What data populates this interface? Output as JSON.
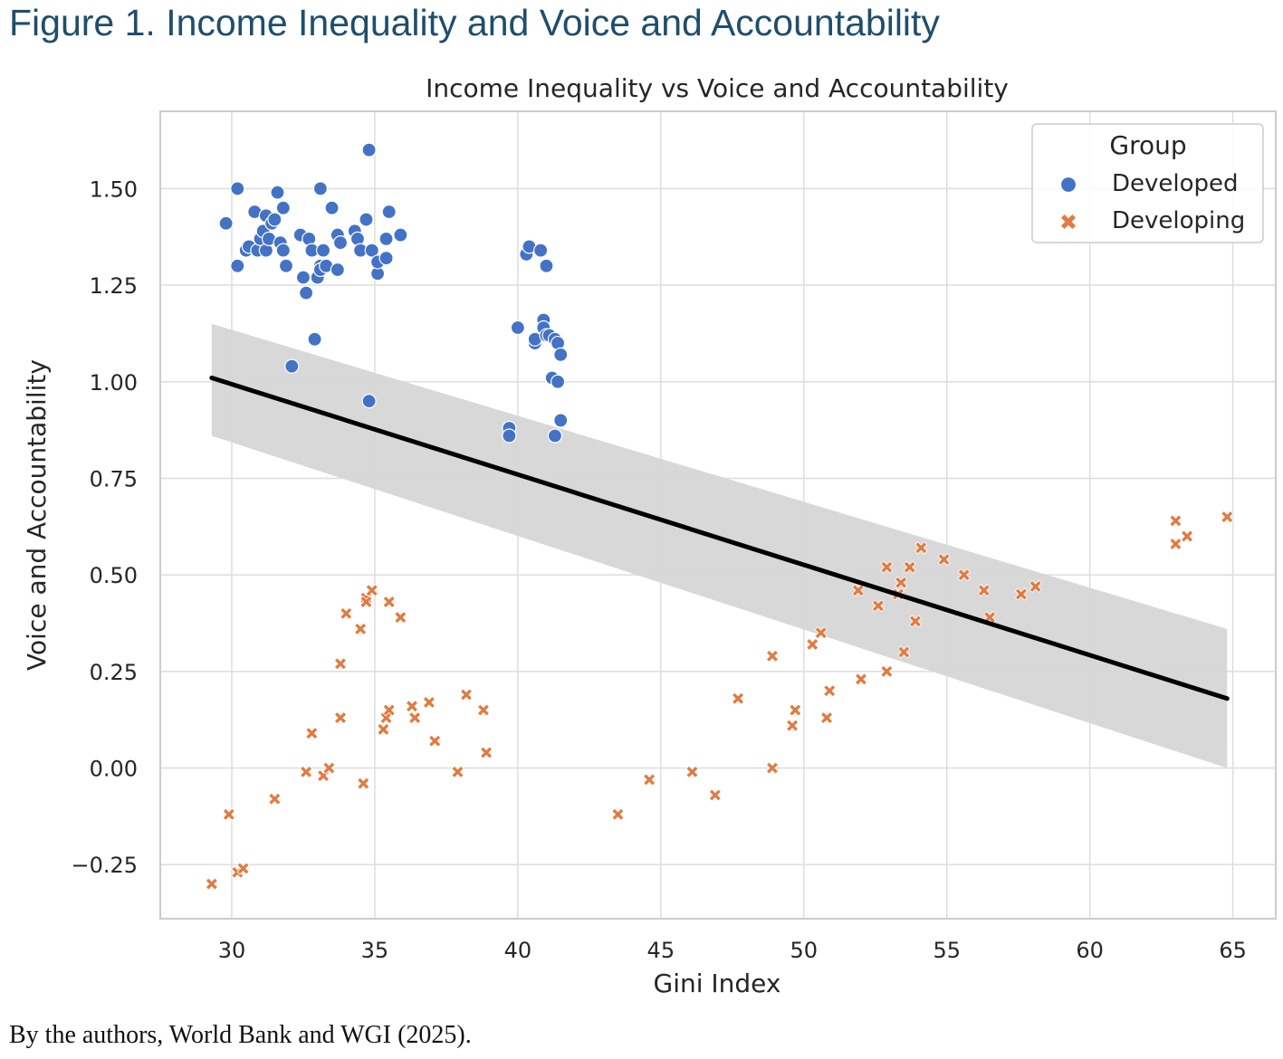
{
  "figure": {
    "title": "Figure 1. Income Inequality and Voice and Accountability",
    "caption": "By the authors, World Bank and WGI (2025)."
  },
  "colors": {
    "developed": "#4472c4",
    "developing": "#e07b42",
    "fit_line": "#000000",
    "ci_band": "#d6d6d6",
    "grid": "#dddddd",
    "frame": "#cccccc"
  },
  "chart_data": {
    "type": "scatter",
    "title": "Income Inequality vs Voice and Accountability",
    "xlabel": "Gini Index",
    "ylabel": "Voice and Accountability",
    "xlim": [
      27.5,
      66.5
    ],
    "ylim": [
      -0.39,
      1.7
    ],
    "xticks": [
      30,
      35,
      40,
      45,
      50,
      55,
      60,
      65
    ],
    "xtick_labels": [
      "30",
      "35",
      "40",
      "45",
      "50",
      "55",
      "60",
      "65"
    ],
    "yticks": [
      -0.25,
      0,
      0.25,
      0.5,
      0.75,
      1.0,
      1.25,
      1.5
    ],
    "ytick_labels": [
      "−0.25",
      "0.00",
      "0.25",
      "0.50",
      "0.75",
      "1.00",
      "1.25",
      "1.50"
    ],
    "grid": true,
    "legend": {
      "title": "Group",
      "position": "top-right",
      "entries": [
        "Developed",
        "Developing"
      ]
    },
    "series": [
      {
        "name": "Developed",
        "marker": "circle",
        "x": [
          29.8,
          30.2,
          30.2,
          30.5,
          30.6,
          30.8,
          30.9,
          31.0,
          31.1,
          31.2,
          31.2,
          31.3,
          31.4,
          31.5,
          31.6,
          31.7,
          31.8,
          31.8,
          31.9,
          32.1,
          32.4,
          32.5,
          32.6,
          32.7,
          32.8,
          32.9,
          33.0,
          33.1,
          33.1,
          33.1,
          33.2,
          33.3,
          33.5,
          33.7,
          33.7,
          33.8,
          34.3,
          34.4,
          34.5,
          34.7,
          34.8,
          34.8,
          34.9,
          35.1,
          35.1,
          35.4,
          35.4,
          35.5,
          35.9,
          39.7,
          39.7,
          40.0,
          40.3,
          40.4,
          40.6,
          40.6,
          40.8,
          40.9,
          40.9,
          41.0,
          41.0,
          41.1,
          41.2,
          41.3,
          41.3,
          41.4,
          41.4,
          41.5,
          41.5
        ],
        "y": [
          1.41,
          1.5,
          1.3,
          1.34,
          1.35,
          1.44,
          1.34,
          1.37,
          1.39,
          1.34,
          1.43,
          1.37,
          1.41,
          1.42,
          1.49,
          1.36,
          1.45,
          1.34,
          1.3,
          1.04,
          1.38,
          1.27,
          1.23,
          1.37,
          1.34,
          1.11,
          1.27,
          1.3,
          1.29,
          1.5,
          1.34,
          1.3,
          1.45,
          1.38,
          1.29,
          1.36,
          1.39,
          1.37,
          1.34,
          1.42,
          1.6,
          0.95,
          1.34,
          1.28,
          1.31,
          1.32,
          1.37,
          1.44,
          1.38,
          0.88,
          0.86,
          1.14,
          1.33,
          1.35,
          1.1,
          1.11,
          1.34,
          1.16,
          1.14,
          1.3,
          1.12,
          1.12,
          1.01,
          0.86,
          1.11,
          1.0,
          1.1,
          0.9,
          1.07
        ]
      },
      {
        "name": "Developing",
        "marker": "x",
        "x": [
          29.3,
          29.9,
          30.2,
          30.4,
          31.5,
          32.6,
          32.8,
          33.2,
          33.4,
          33.8,
          33.8,
          34.0,
          34.5,
          34.6,
          34.7,
          34.7,
          34.9,
          35.3,
          35.4,
          35.5,
          35.5,
          35.9,
          36.3,
          36.4,
          36.9,
          37.1,
          37.9,
          38.2,
          38.8,
          38.9,
          43.5,
          44.6,
          46.1,
          46.9,
          47.7,
          48.9,
          48.9,
          49.6,
          49.7,
          50.3,
          50.6,
          50.8,
          50.9,
          51.9,
          52.0,
          52.6,
          52.9,
          52.9,
          53.3,
          53.4,
          53.5,
          53.7,
          53.9,
          54.1,
          54.9,
          55.6,
          56.3,
          56.5,
          57.6,
          58.1,
          63.0,
          63.0,
          63.4,
          64.8
        ],
        "y": [
          -0.3,
          -0.12,
          -0.27,
          -0.26,
          -0.08,
          -0.01,
          0.09,
          -0.02,
          0.0,
          0.27,
          0.13,
          0.4,
          0.36,
          -0.04,
          0.44,
          0.43,
          0.46,
          0.1,
          0.13,
          0.43,
          0.15,
          0.39,
          0.16,
          0.13,
          0.17,
          0.07,
          -0.01,
          0.19,
          0.15,
          0.04,
          -0.12,
          -0.03,
          -0.01,
          -0.07,
          0.18,
          0.29,
          0.0,
          0.11,
          0.15,
          0.32,
          0.35,
          0.13,
          0.2,
          0.46,
          0.23,
          0.42,
          0.52,
          0.25,
          0.45,
          0.48,
          0.3,
          0.52,
          0.38,
          0.57,
          0.54,
          0.5,
          0.46,
          0.39,
          0.45,
          0.47,
          0.58,
          0.64,
          0.6,
          0.65
        ]
      }
    ],
    "regression": {
      "x": [
        29.3,
        64.8
      ],
      "y": [
        1.01,
        0.18
      ],
      "ci_upper": [
        1.15,
        0.36
      ],
      "ci_lower": [
        0.86,
        0.0
      ]
    }
  }
}
